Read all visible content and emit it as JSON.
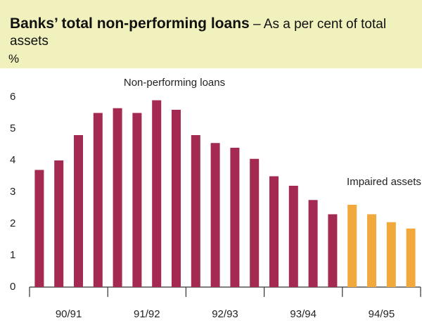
{
  "chart_data": {
    "type": "bar",
    "title": "Banks’ total non-performing loans",
    "subtitle": "– As a per cent of total assets",
    "y_label": "%",
    "categories": [
      null,
      null,
      null,
      null,
      null,
      null,
      null,
      null,
      null,
      null,
      null,
      null,
      null,
      null,
      null,
      null,
      null,
      null,
      null,
      null
    ],
    "groups": [
      "90/91",
      "91/92",
      "92/93",
      "93/94",
      "94/95"
    ],
    "series": [
      {
        "name": "Non-performing loans",
        "color": "#a52a52",
        "values": [
          3.7,
          4.0,
          4.8,
          5.5,
          5.65,
          5.5,
          5.9,
          5.6,
          4.8,
          4.55,
          4.4,
          4.05,
          3.5,
          3.2,
          2.75,
          2.3,
          null,
          null,
          null,
          null
        ]
      },
      {
        "name": "Impaired assets",
        "color": "#f2a93b",
        "values": [
          null,
          null,
          null,
          null,
          null,
          null,
          null,
          null,
          null,
          null,
          null,
          null,
          null,
          null,
          null,
          null,
          2.6,
          2.3,
          2.05,
          1.85
        ]
      }
    ],
    "ylim": [
      0,
      6.8
    ],
    "yticks": [
      0,
      1,
      2,
      3,
      4,
      5,
      6
    ],
    "grid": false
  }
}
